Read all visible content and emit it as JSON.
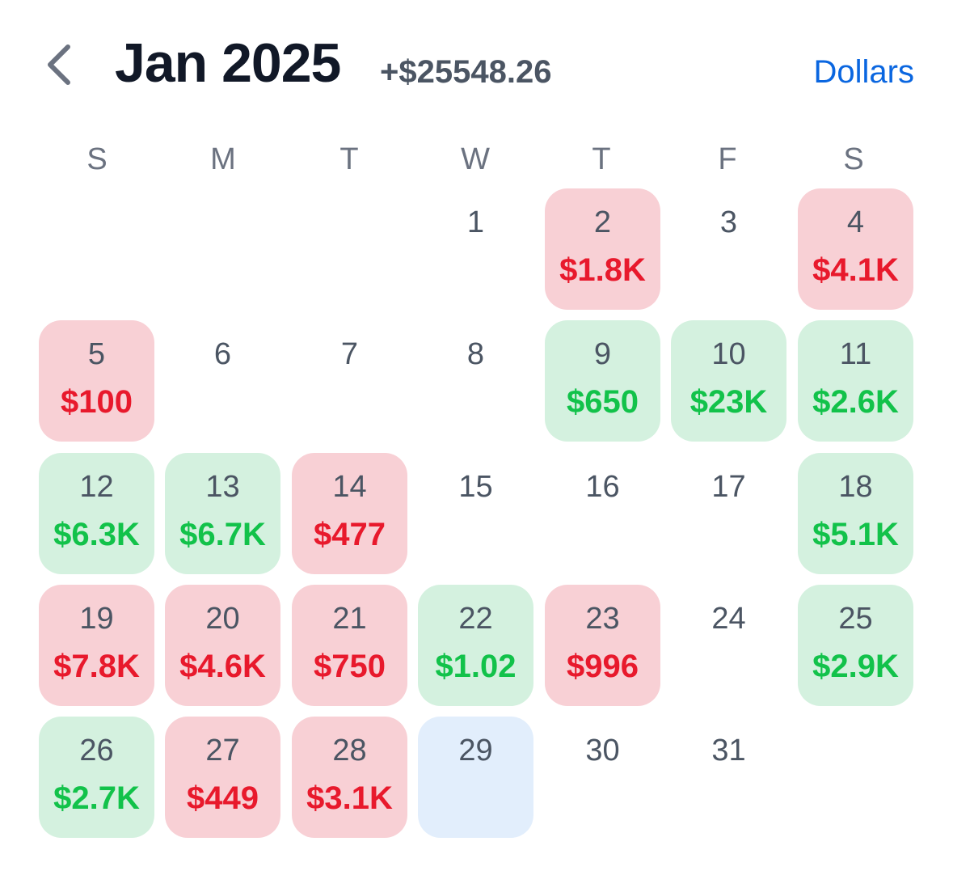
{
  "header": {
    "back_icon": "chevron-left-icon",
    "title": "Jan 2025",
    "total": "+$25548.26",
    "currency_toggle": "Dollars"
  },
  "colors": {
    "loss_bg": "#f8d0d5",
    "loss_text": "#e8192c",
    "gain_bg": "#d4f1df",
    "gain_text": "#12c24a",
    "today_bg": "#e2eefc",
    "accent": "#0a66e0"
  },
  "weekdays": [
    "S",
    "M",
    "T",
    "W",
    "T",
    "F",
    "S"
  ],
  "weeks": [
    [
      null,
      null,
      null,
      {
        "day": "1",
        "value": "",
        "status": "none"
      },
      {
        "day": "2",
        "value": "$1.8K",
        "status": "loss"
      },
      {
        "day": "3",
        "value": "",
        "status": "none"
      },
      {
        "day": "4",
        "value": "$4.1K",
        "status": "loss"
      }
    ],
    [
      {
        "day": "5",
        "value": "$100",
        "status": "loss"
      },
      {
        "day": "6",
        "value": "",
        "status": "none"
      },
      {
        "day": "7",
        "value": "",
        "status": "none"
      },
      {
        "day": "8",
        "value": "",
        "status": "none"
      },
      {
        "day": "9",
        "value": "$650",
        "status": "gain"
      },
      {
        "day": "10",
        "value": "$23K",
        "status": "gain"
      },
      {
        "day": "11",
        "value": "$2.6K",
        "status": "gain"
      }
    ],
    [
      {
        "day": "12",
        "value": "$6.3K",
        "status": "gain"
      },
      {
        "day": "13",
        "value": "$6.7K",
        "status": "gain"
      },
      {
        "day": "14",
        "value": "$477",
        "status": "loss"
      },
      {
        "day": "15",
        "value": "",
        "status": "none"
      },
      {
        "day": "16",
        "value": "",
        "status": "none"
      },
      {
        "day": "17",
        "value": "",
        "status": "none"
      },
      {
        "day": "18",
        "value": "$5.1K",
        "status": "gain"
      }
    ],
    [
      {
        "day": "19",
        "value": "$7.8K",
        "status": "loss"
      },
      {
        "day": "20",
        "value": "$4.6K",
        "status": "loss"
      },
      {
        "day": "21",
        "value": "$750",
        "status": "loss"
      },
      {
        "day": "22",
        "value": "$1.02",
        "status": "gain"
      },
      {
        "day": "23",
        "value": "$996",
        "status": "loss"
      },
      {
        "day": "24",
        "value": "",
        "status": "none"
      },
      {
        "day": "25",
        "value": "$2.9K",
        "status": "gain"
      }
    ],
    [
      {
        "day": "26",
        "value": "$2.7K",
        "status": "gain"
      },
      {
        "day": "27",
        "value": "$449",
        "status": "loss"
      },
      {
        "day": "28",
        "value": "$3.1K",
        "status": "loss"
      },
      {
        "day": "29",
        "value": "",
        "status": "today"
      },
      {
        "day": "30",
        "value": "",
        "status": "none"
      },
      {
        "day": "31",
        "value": "",
        "status": "none"
      },
      null
    ]
  ]
}
